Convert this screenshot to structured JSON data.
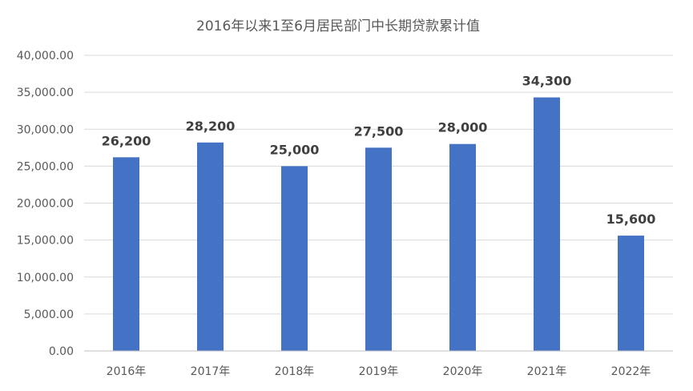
{
  "chart_data": {
    "type": "bar",
    "title": "2016年以来1至6月居民部门中长期贷款累计值",
    "categories": [
      "2016年",
      "2017年",
      "2018年",
      "2019年",
      "2020年",
      "2021年",
      "2022年"
    ],
    "values": [
      26200,
      28200,
      25000,
      27500,
      28000,
      34300,
      15600
    ],
    "data_labels": [
      "26,200",
      "28,200",
      "25,000",
      "27,500",
      "28,000",
      "34,300",
      "15,600"
    ],
    "y_ticks": [
      "0.00",
      "5,000.00",
      "10,000.00",
      "15,000.00",
      "20,000.00",
      "25,000.00",
      "30,000.00",
      "35,000.00",
      "40,000.00"
    ],
    "ylim": [
      0,
      40000
    ],
    "xlabel": "",
    "ylabel": "",
    "grid": true,
    "legend": "none",
    "bar_color": "#4472c4"
  }
}
